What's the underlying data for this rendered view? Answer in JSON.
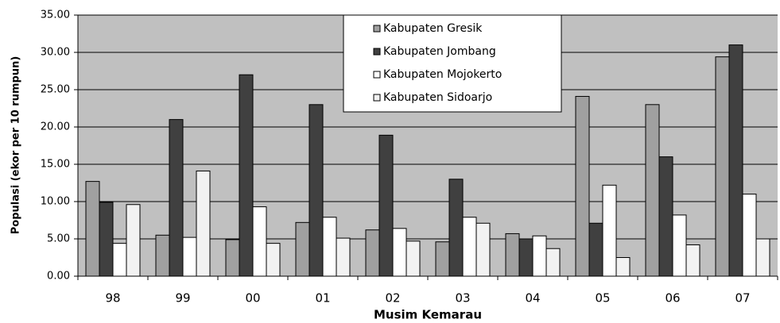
{
  "chart_data": {
    "type": "bar",
    "x_label": "Musim Kemarau",
    "y_label": "Populasi (ekor per 10 rumpun)",
    "categories": [
      "98",
      "99",
      "00",
      "01",
      "02",
      "03",
      "04",
      "05",
      "06",
      "07"
    ],
    "series": [
      {
        "name": "Kabupaten Gresik",
        "color": "#a0a0a0",
        "values": [
          12.7,
          5.5,
          4.9,
          7.2,
          6.2,
          4.6,
          5.7,
          24.1,
          23,
          29.4
        ]
      },
      {
        "name": "Kabupaten Jombang",
        "color": "#404040",
        "values": [
          9.9,
          21,
          27,
          23,
          18.9,
          13,
          5.0,
          7.1,
          16,
          31
        ]
      },
      {
        "name": "Kabupaten Mojokerto",
        "color": "#ffffff",
        "values": [
          4.4,
          5.2,
          9.3,
          7.9,
          6.4,
          7.9,
          5.4,
          12.2,
          8.2,
          11
        ]
      },
      {
        "name": "Kabupaten Sidoarjo",
        "color": "#f2f2f2",
        "values": [
          9.6,
          14.1,
          4.4,
          5.1,
          4.7,
          7.1,
          3.7,
          2.5,
          4.2,
          5.0
        ]
      }
    ],
    "ylim": [
      0,
      35
    ],
    "yticks": [
      {
        "value": 0,
        "label": "0.00"
      },
      {
        "value": 5,
        "label": "5.00"
      },
      {
        "value": 10,
        "label": "10.00"
      },
      {
        "value": 15,
        "label": "15.00"
      },
      {
        "value": 20,
        "label": "20.00"
      },
      {
        "value": 25,
        "label": "25.00"
      },
      {
        "value": 30,
        "label": "30.00"
      },
      {
        "value": 35,
        "label": "35.00"
      }
    ],
    "grid": true,
    "legend": "top"
  }
}
